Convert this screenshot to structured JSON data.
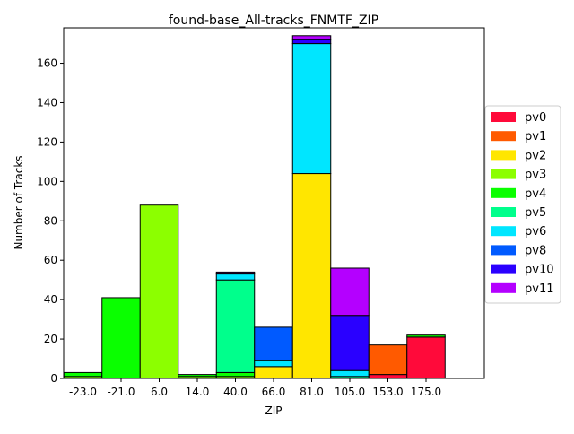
{
  "chart_data": {
    "type": "bar",
    "stacked": true,
    "title": "found-base_All-tracks_FNMTF_ZIP",
    "xlabel": "ZIP",
    "ylabel": "Number of Tracks",
    "categories": [
      "-23.0",
      "-21.0",
      "6.0",
      "14.0",
      "40.0",
      "66.0",
      "81.0",
      "105.0",
      "153.0",
      "175.0"
    ],
    "ylim": [
      0,
      178
    ],
    "yticks": [
      0,
      20,
      40,
      60,
      80,
      100,
      120,
      140,
      160
    ],
    "grid": false,
    "legend_position": "right",
    "series": [
      {
        "name": "pv0",
        "color": "#ff0a3a",
        "values": [
          0,
          0,
          0,
          0,
          0,
          0,
          0,
          0,
          2,
          21
        ]
      },
      {
        "name": "pv1",
        "color": "#ff5a00",
        "values": [
          0,
          0,
          0,
          0,
          0,
          0,
          0,
          0,
          15,
          0
        ]
      },
      {
        "name": "pv2",
        "color": "#ffe600",
        "values": [
          0,
          0,
          0,
          0,
          0,
          6,
          104,
          0,
          0,
          0
        ]
      },
      {
        "name": "pv3",
        "color": "#8cff00",
        "values": [
          1,
          0,
          88,
          1,
          1,
          0,
          0,
          0,
          0,
          0
        ]
      },
      {
        "name": "pv4",
        "color": "#0aff00",
        "values": [
          2,
          41,
          0,
          1,
          2,
          0,
          0,
          0,
          0,
          1
        ]
      },
      {
        "name": "pv5",
        "color": "#00ff8c",
        "values": [
          0,
          0,
          0,
          0,
          47,
          0,
          0,
          1,
          0,
          0
        ]
      },
      {
        "name": "pv6",
        "color": "#00e6ff",
        "values": [
          0,
          0,
          0,
          0,
          3,
          3,
          66,
          3,
          0,
          0
        ]
      },
      {
        "name": "pv8",
        "color": "#005aff",
        "values": [
          0,
          0,
          0,
          0,
          0,
          17,
          0,
          0,
          0,
          0
        ]
      },
      {
        "name": "pv10",
        "color": "#2a00ff",
        "values": [
          0,
          0,
          0,
          0,
          0,
          0,
          2,
          28,
          0,
          0
        ]
      },
      {
        "name": "pv11",
        "color": "#b400ff",
        "values": [
          0,
          0,
          0,
          0,
          1,
          0,
          2,
          24,
          0,
          0
        ]
      }
    ]
  }
}
